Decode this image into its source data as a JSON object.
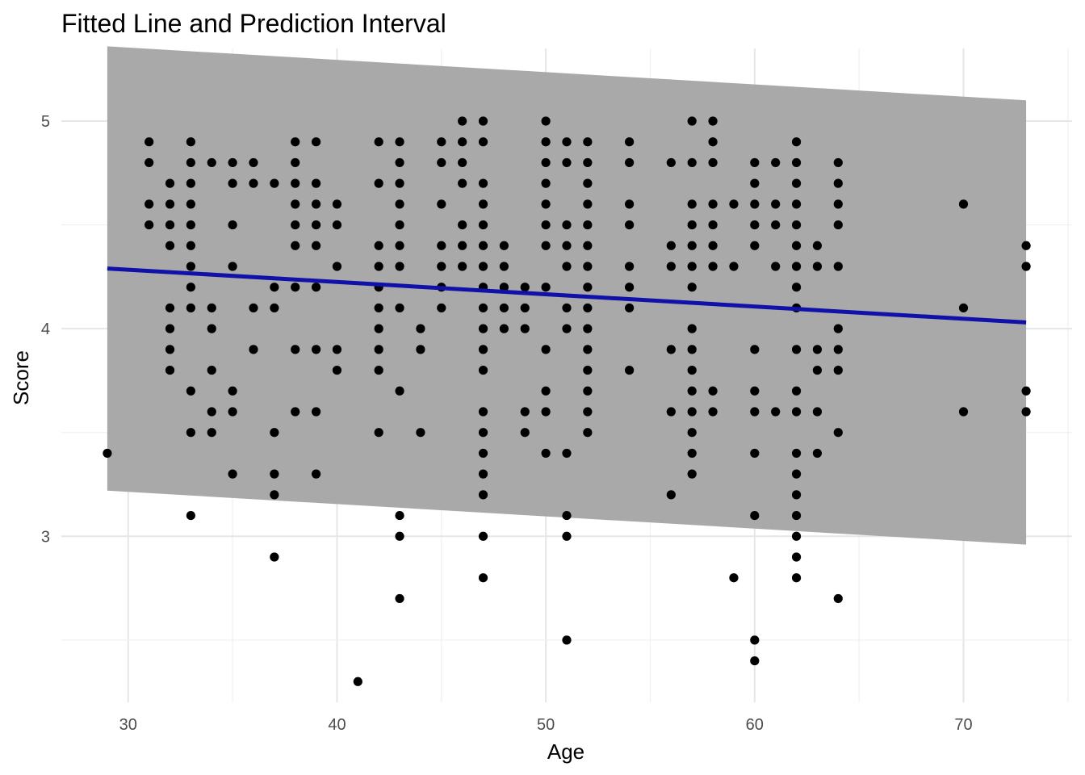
{
  "chart_data": {
    "type": "scatter",
    "title": "Fitted Line and Prediction Interval",
    "xlabel": "Age",
    "ylabel": "Score",
    "xlim": [
      26.8,
      75.2
    ],
    "ylim": [
      2.2,
      5.35
    ],
    "x_ticks": [
      30,
      40,
      50,
      60,
      70
    ],
    "y_ticks": [
      3,
      4,
      5
    ],
    "x_tick_labels": [
      "30",
      "40",
      "50",
      "60",
      "70"
    ],
    "y_tick_labels": [
      "3",
      "4",
      "5"
    ],
    "grid": true,
    "legend": "none",
    "colors": {
      "points": "#000000",
      "fit_line": "#1111aa",
      "interval": "#a9a9a9"
    },
    "fitted_line": {
      "x": [
        29,
        73
      ],
      "y": [
        4.29,
        4.03
      ]
    },
    "prediction_interval": {
      "x": [
        29,
        73
      ],
      "lower": [
        3.22,
        2.96
      ],
      "upper": [
        5.36,
        5.1
      ]
    },
    "points": [
      [
        29,
        3.4
      ],
      [
        31,
        4.9
      ],
      [
        31,
        4.8
      ],
      [
        31,
        4.6
      ],
      [
        31,
        4.5
      ],
      [
        32,
        4.7
      ],
      [
        32,
        4.6
      ],
      [
        32,
        4.5
      ],
      [
        32,
        4.4
      ],
      [
        32,
        4.1
      ],
      [
        32,
        4.0
      ],
      [
        32,
        3.9
      ],
      [
        32,
        3.8
      ],
      [
        33,
        4.9
      ],
      [
        33,
        4.8
      ],
      [
        33,
        4.7
      ],
      [
        33,
        4.6
      ],
      [
        33,
        4.5
      ],
      [
        33,
        4.4
      ],
      [
        33,
        4.3
      ],
      [
        33,
        4.2
      ],
      [
        33,
        4.1
      ],
      [
        33,
        3.7
      ],
      [
        33,
        3.5
      ],
      [
        33,
        3.1
      ],
      [
        34,
        4.8
      ],
      [
        34,
        4.1
      ],
      [
        34,
        4.0
      ],
      [
        34,
        3.8
      ],
      [
        34,
        3.6
      ],
      [
        34,
        3.5
      ],
      [
        35,
        4.8
      ],
      [
        35,
        4.7
      ],
      [
        35,
        4.5
      ],
      [
        35,
        4.3
      ],
      [
        35,
        3.7
      ],
      [
        35,
        3.6
      ],
      [
        35,
        3.3
      ],
      [
        36,
        4.8
      ],
      [
        36,
        4.7
      ],
      [
        36,
        4.1
      ],
      [
        36,
        3.9
      ],
      [
        37,
        4.7
      ],
      [
        37,
        4.2
      ],
      [
        37,
        4.1
      ],
      [
        37,
        3.5
      ],
      [
        37,
        3.3
      ],
      [
        37,
        3.2
      ],
      [
        37,
        2.9
      ],
      [
        38,
        4.9
      ],
      [
        38,
        4.8
      ],
      [
        38,
        4.7
      ],
      [
        38,
        4.6
      ],
      [
        38,
        4.5
      ],
      [
        38,
        4.4
      ],
      [
        38,
        4.2
      ],
      [
        38,
        3.9
      ],
      [
        38,
        3.6
      ],
      [
        39,
        4.9
      ],
      [
        39,
        4.7
      ],
      [
        39,
        4.6
      ],
      [
        39,
        4.5
      ],
      [
        39,
        4.4
      ],
      [
        39,
        4.2
      ],
      [
        39,
        3.9
      ],
      [
        39,
        3.6
      ],
      [
        39,
        3.3
      ],
      [
        40,
        4.6
      ],
      [
        40,
        4.5
      ],
      [
        40,
        4.3
      ],
      [
        40,
        3.9
      ],
      [
        40,
        3.8
      ],
      [
        41,
        2.3
      ],
      [
        42,
        4.9
      ],
      [
        42,
        4.7
      ],
      [
        42,
        4.4
      ],
      [
        42,
        4.3
      ],
      [
        42,
        4.2
      ],
      [
        42,
        4.1
      ],
      [
        42,
        4.0
      ],
      [
        42,
        3.9
      ],
      [
        42,
        3.8
      ],
      [
        42,
        3.5
      ],
      [
        43,
        4.9
      ],
      [
        43,
        4.8
      ],
      [
        43,
        4.7
      ],
      [
        43,
        4.6
      ],
      [
        43,
        4.5
      ],
      [
        43,
        4.4
      ],
      [
        43,
        4.3
      ],
      [
        43,
        4.1
      ],
      [
        43,
        3.7
      ],
      [
        43,
        3.1
      ],
      [
        43,
        3.0
      ],
      [
        43,
        2.7
      ],
      [
        44,
        4.0
      ],
      [
        44,
        3.9
      ],
      [
        44,
        3.5
      ],
      [
        45,
        4.9
      ],
      [
        45,
        4.8
      ],
      [
        45,
        4.6
      ],
      [
        45,
        4.4
      ],
      [
        45,
        4.3
      ],
      [
        45,
        4.2
      ],
      [
        45,
        4.1
      ],
      [
        46,
        5.0
      ],
      [
        46,
        4.9
      ],
      [
        46,
        4.8
      ],
      [
        46,
        4.7
      ],
      [
        46,
        4.5
      ],
      [
        46,
        4.4
      ],
      [
        46,
        4.3
      ],
      [
        47,
        5.0
      ],
      [
        47,
        4.9
      ],
      [
        47,
        4.7
      ],
      [
        47,
        4.6
      ],
      [
        47,
        4.5
      ],
      [
        47,
        4.4
      ],
      [
        47,
        4.3
      ],
      [
        47,
        4.2
      ],
      [
        47,
        4.1
      ],
      [
        47,
        4.0
      ],
      [
        47,
        3.9
      ],
      [
        47,
        3.8
      ],
      [
        47,
        3.6
      ],
      [
        47,
        3.5
      ],
      [
        47,
        3.4
      ],
      [
        47,
        3.3
      ],
      [
        47,
        3.2
      ],
      [
        47,
        3.0
      ],
      [
        47,
        2.8
      ],
      [
        48,
        4.4
      ],
      [
        48,
        4.3
      ],
      [
        48,
        4.2
      ],
      [
        48,
        4.1
      ],
      [
        48,
        4.0
      ],
      [
        49,
        4.2
      ],
      [
        49,
        4.1
      ],
      [
        49,
        4.0
      ],
      [
        49,
        3.6
      ],
      [
        49,
        3.5
      ],
      [
        50,
        5.0
      ],
      [
        50,
        4.9
      ],
      [
        50,
        4.8
      ],
      [
        50,
        4.7
      ],
      [
        50,
        4.6
      ],
      [
        50,
        4.5
      ],
      [
        50,
        4.4
      ],
      [
        50,
        4.2
      ],
      [
        50,
        3.9
      ],
      [
        50,
        3.7
      ],
      [
        50,
        3.6
      ],
      [
        50,
        3.4
      ],
      [
        51,
        4.9
      ],
      [
        51,
        4.8
      ],
      [
        51,
        4.5
      ],
      [
        51,
        4.4
      ],
      [
        51,
        4.3
      ],
      [
        51,
        4.1
      ],
      [
        51,
        4.0
      ],
      [
        51,
        3.4
      ],
      [
        51,
        3.1
      ],
      [
        51,
        3.0
      ],
      [
        51,
        2.5
      ],
      [
        52,
        4.9
      ],
      [
        52,
        4.8
      ],
      [
        52,
        4.7
      ],
      [
        52,
        4.6
      ],
      [
        52,
        4.5
      ],
      [
        52,
        4.4
      ],
      [
        52,
        4.3
      ],
      [
        52,
        4.2
      ],
      [
        52,
        4.1
      ],
      [
        52,
        4.0
      ],
      [
        52,
        3.9
      ],
      [
        52,
        3.8
      ],
      [
        52,
        3.7
      ],
      [
        52,
        3.6
      ],
      [
        52,
        3.5
      ],
      [
        54,
        4.9
      ],
      [
        54,
        4.8
      ],
      [
        54,
        4.6
      ],
      [
        54,
        4.5
      ],
      [
        54,
        4.3
      ],
      [
        54,
        4.2
      ],
      [
        54,
        4.1
      ],
      [
        54,
        3.8
      ],
      [
        56,
        4.8
      ],
      [
        56,
        4.4
      ],
      [
        56,
        4.3
      ],
      [
        56,
        3.9
      ],
      [
        56,
        3.6
      ],
      [
        56,
        3.2
      ],
      [
        57,
        5.0
      ],
      [
        57,
        4.8
      ],
      [
        57,
        4.6
      ],
      [
        57,
        4.5
      ],
      [
        57,
        4.4
      ],
      [
        57,
        4.3
      ],
      [
        57,
        4.2
      ],
      [
        57,
        4.0
      ],
      [
        57,
        3.9
      ],
      [
        57,
        3.8
      ],
      [
        57,
        3.7
      ],
      [
        57,
        3.6
      ],
      [
        57,
        3.5
      ],
      [
        57,
        3.4
      ],
      [
        57,
        3.3
      ],
      [
        58,
        5.0
      ],
      [
        58,
        4.9
      ],
      [
        58,
        4.8
      ],
      [
        58,
        4.6
      ],
      [
        58,
        4.5
      ],
      [
        58,
        4.4
      ],
      [
        58,
        4.3
      ],
      [
        58,
        3.7
      ],
      [
        58,
        3.6
      ],
      [
        59,
        4.6
      ],
      [
        59,
        4.3
      ],
      [
        59,
        2.8
      ],
      [
        60,
        4.8
      ],
      [
        60,
        4.7
      ],
      [
        60,
        4.6
      ],
      [
        60,
        4.5
      ],
      [
        60,
        4.4
      ],
      [
        60,
        3.9
      ],
      [
        60,
        3.7
      ],
      [
        60,
        3.6
      ],
      [
        60,
        3.4
      ],
      [
        60,
        3.1
      ],
      [
        60,
        2.5
      ],
      [
        60,
        2.4
      ],
      [
        61,
        4.8
      ],
      [
        61,
        4.6
      ],
      [
        61,
        4.5
      ],
      [
        61,
        4.3
      ],
      [
        61,
        3.6
      ],
      [
        62,
        4.9
      ],
      [
        62,
        4.8
      ],
      [
        62,
        4.7
      ],
      [
        62,
        4.6
      ],
      [
        62,
        4.5
      ],
      [
        62,
        4.4
      ],
      [
        62,
        4.3
      ],
      [
        62,
        4.2
      ],
      [
        62,
        4.1
      ],
      [
        62,
        3.9
      ],
      [
        62,
        3.7
      ],
      [
        62,
        3.6
      ],
      [
        62,
        3.4
      ],
      [
        62,
        3.3
      ],
      [
        62,
        3.2
      ],
      [
        62,
        3.1
      ],
      [
        62,
        3.0
      ],
      [
        62,
        2.9
      ],
      [
        62,
        2.8
      ],
      [
        63,
        4.4
      ],
      [
        63,
        4.3
      ],
      [
        63,
        3.9
      ],
      [
        63,
        3.8
      ],
      [
        63,
        3.6
      ],
      [
        63,
        3.4
      ],
      [
        64,
        4.8
      ],
      [
        64,
        4.7
      ],
      [
        64,
        4.6
      ],
      [
        64,
        4.5
      ],
      [
        64,
        4.3
      ],
      [
        64,
        4.0
      ],
      [
        64,
        3.9
      ],
      [
        64,
        3.8
      ],
      [
        64,
        3.5
      ],
      [
        64,
        2.7
      ],
      [
        70,
        4.6
      ],
      [
        70,
        4.1
      ],
      [
        70,
        3.6
      ],
      [
        73,
        4.4
      ],
      [
        73,
        4.3
      ],
      [
        73,
        3.7
      ],
      [
        73,
        3.6
      ]
    ]
  }
}
